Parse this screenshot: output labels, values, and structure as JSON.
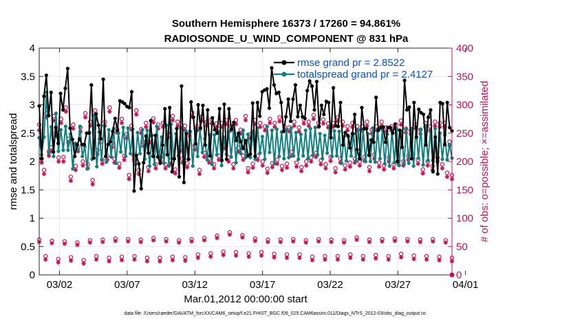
{
  "chart_data": {
    "type": "line",
    "title_line1": "Southern Hemisphere 16373 / 17260 = 94.861%",
    "title_line2": "RADIOSONDE_U_WIND_COMPONENT @ 831 hPa",
    "xlabel": "Mar.01,2012 00:00:00 start",
    "ylabel": "rmse and totalspread",
    "y2label": "# of obs: o=possible; ×=assimilated",
    "footnote": "data file: /Users/raeder/DAI/ATM_forcXX/CAM6_setup/f.e21.FHIST_BGC.f09_025.CAM6assim.011/Diags_NTrS_2012-03/obs_diag_output.nc",
    "xlim": [
      0.5,
      31.0
    ],
    "ylim": [
      0,
      4
    ],
    "y2lim": [
      0,
      400
    ],
    "x_ticks": [
      2,
      7,
      12,
      17,
      22,
      27,
      32
    ],
    "x_tick_labels": [
      "03/02",
      "03/07",
      "03/12",
      "03/17",
      "03/22",
      "03/27",
      "04/01"
    ],
    "y_ticks": [
      0,
      0.5,
      1,
      1.5,
      2,
      2.5,
      3,
      3.5,
      4
    ],
    "y_tick_labels": [
      "0",
      "0.5",
      "1",
      "1.5",
      "2",
      "2.5",
      "3",
      "3.5",
      "4"
    ],
    "y2_ticks": [
      0,
      50,
      100,
      150,
      200,
      250,
      300,
      350,
      400
    ],
    "y2_tick_labels": [
      "0",
      "50",
      "100",
      "150",
      "200",
      "250",
      "300",
      "350",
      "400"
    ],
    "colors": {
      "rmse": "#000000",
      "spread": "#0e8080",
      "obs": "#c8104f",
      "legend_text": "#0a4fd6",
      "grid": "#e6e6e6"
    },
    "legend": [
      {
        "label": "rmse grand pr = 2.8522",
        "series": "rmse"
      },
      {
        "label": "totalspread grand pr = 2.4127",
        "series": "spread"
      }
    ],
    "series": [
      {
        "name": "rmse",
        "values": [
          2.98,
          2.05,
          3.15,
          3.52,
          2.81,
          3.22,
          2.17,
          2.6,
          2.32,
          3.2,
          2.91,
          3.29,
          3.64,
          2.59,
          2.39,
          2.09,
          2.3,
          2.4,
          2.3,
          2.3,
          2.5,
          2.5,
          3.35,
          2.06,
          2.84,
          2.64,
          2.4,
          3.45,
          2.09,
          2.3,
          2.35,
          2.53,
          2.76,
          2.55,
          3.07,
          3.05,
          3.02,
          2.97,
          2.95,
          3.23,
          1.48,
          2.11,
          1.96,
          1.52,
          1.98,
          2.45,
          2.15,
          2.72,
          2.09,
          2.46,
          2.08,
          1.97,
          2.29,
          2.93,
          2.12,
          2.95,
          1.82,
          2.05,
          2.58,
          1.73,
          3.33,
          1.63,
          2.49,
          2.04,
          3.05,
          2.78,
          2.31,
          3.0,
          2.59,
          2.99,
          2.29,
          2.91,
          2.1,
          2.77,
          2.56,
          2.5,
          2.93,
          2.02,
          3.01,
          2.04,
          2.93,
          2.57,
          2.69,
          2.37,
          2.5,
          2.35,
          2.23,
          2.37,
          2.1,
          2.13,
          3.03,
          2.09,
          3.04,
          2.8,
          3.23,
          3.26,
          3.28,
          2.94,
          3.65,
          3.35,
          3.2,
          3.22,
          3.04,
          2.53,
          2.79,
          3.1,
          2.71,
          3.1,
          3.35,
          2.79,
          2.99,
          2.79,
          2.76,
          3.25,
          3.42,
          3.33,
          2.91,
          3.41,
          2.62,
          2.99,
          2.83,
          3.06,
          3.04,
          2.42,
          3.3,
          2.63,
          2.62,
          3.04,
          2.29,
          2.51,
          2.46,
          2.24,
          2.49,
          2.83,
          2.21,
          2.05,
          2.95,
          2.58,
          2.58,
          2.11,
          2.38,
          2.34,
          3.13,
          2.55,
          2.6,
          2.61,
          2.34,
          2.6,
          2.6,
          2.5,
          2.66,
          2.0,
          2.55,
          2.25,
          3.43,
          2.91,
          2.96,
          2.05,
          3.04,
          2.43,
          2.92,
          2.86,
          2.83,
          2.29,
          2.78,
          2.91,
          1.82,
          2.43,
          1.78,
          3.04,
          3.02,
          2.3,
          3.04,
          2.6,
          2.54
        ]
      },
      {
        "name": "totalspread",
        "values": [
          2.42,
          2.12,
          2.43,
          3.22,
          2.15,
          2.61,
          2.09,
          2.85,
          2.18,
          2.56,
          2.2,
          2.62,
          2.2,
          2.48,
          1.87,
          2.32,
          2.22,
          2.62,
          2.09,
          2.26,
          1.87,
          2.51,
          2.04,
          2.81,
          1.91,
          2.52,
          2.03,
          2.63,
          1.99,
          2.56,
          2.08,
          2.58,
          1.97,
          2.5,
          2.17,
          2.6,
          2.09,
          2.59,
          2.14,
          2.57,
          1.95,
          2.51,
          2.14,
          2.56,
          2.04,
          2.55,
          1.92,
          2.46,
          1.95,
          2.62,
          2.06,
          2.43,
          1.97,
          2.64,
          1.92,
          2.66,
          2.05,
          2.49,
          2.1,
          2.59,
          1.98,
          2.54,
          2.04,
          2.53,
          1.92,
          2.58,
          2.09,
          2.56,
          2.16,
          2.4,
          2.03,
          2.47,
          1.95,
          2.47,
          2.12,
          2.53,
          1.93,
          2.43,
          2.13,
          2.52,
          2.08,
          2.58,
          1.98,
          2.48,
          2.14,
          2.55,
          2.07,
          2.48,
          2.07,
          2.53,
          2.04,
          2.59,
          2.15,
          2.44,
          2.04,
          2.62,
          2.16,
          2.55,
          1.96,
          2.57,
          2.09,
          2.52,
          2.05,
          2.56,
          2.07,
          2.59,
          2.1,
          2.51,
          2.04,
          2.48,
          2.1,
          2.55,
          2.05,
          2.58,
          2.11,
          2.6,
          2.12,
          2.49,
          2.05,
          2.46,
          2.15,
          2.62,
          2.09,
          2.54,
          2.1,
          2.53,
          1.97,
          2.44,
          2.01,
          2.44,
          2.1,
          2.49,
          2.01,
          2.56,
          2.04,
          2.56,
          2.0,
          2.49,
          2.0,
          2.59,
          1.99,
          2.57,
          2.05,
          2.56,
          1.96,
          2.48,
          1.92,
          2.55,
          1.98,
          2.56,
          1.93,
          2.53,
          1.96,
          2.57,
          1.97,
          2.58,
          1.92,
          2.59,
          2.06,
          2.57,
          1.94,
          2.63,
          2.02,
          2.53,
          2.02,
          2.58,
          2.03,
          2.5,
          2.04,
          2.47,
          2.03,
          2.3,
          2.06
        ]
      },
      {
        "name": "obs_possible",
        "values": [
          265,
          205,
          185,
          285,
          218,
          225,
          280,
          252,
          207,
          275,
          208,
          295,
          240,
          173,
          265,
          192,
          225,
          260,
          200,
          285,
          195,
          270,
          167,
          290,
          220,
          240,
          203,
          270,
          210,
          295,
          232,
          205,
          258,
          196,
          275,
          210,
          248,
          176,
          263,
          210,
          290,
          185,
          257,
          234,
          268,
          190,
          240,
          276,
          195,
          265,
          207,
          268,
          195,
          250,
          202,
          280,
          186,
          270,
          225,
          205,
          263,
          197,
          252,
          286,
          228,
          262,
          185,
          279,
          215,
          270,
          205,
          274,
          195,
          267,
          210,
          268,
          230,
          273,
          207,
          262,
          195,
          273,
          224,
          256,
          210,
          280,
          188,
          248,
          196,
          273,
          210,
          268,
          200,
          262,
          187,
          275,
          197,
          268,
          203,
          278,
          192,
          262,
          196,
          260,
          217,
          270,
          198,
          260,
          190,
          274,
          200,
          270,
          207,
          282,
          215,
          268,
          202,
          274,
          195,
          267,
          208,
          268,
          188,
          278,
          205,
          270,
          193,
          262,
          198,
          268,
          205,
          262,
          200,
          262,
          208,
          270,
          190,
          256,
          212,
          262,
          198,
          270,
          193,
          260,
          207,
          262,
          195,
          265,
          202,
          272,
          200,
          258,
          210,
          255,
          213,
          265,
          203,
          256,
          186,
          268,
          200,
          262,
          192,
          270,
          207,
          268,
          195,
          268,
          180,
          235,
          176
        ]
      },
      {
        "name": "obs_assimilated",
        "values": [
          255,
          198,
          178,
          278,
          210,
          218,
          272,
          245,
          200,
          268,
          200,
          288,
          233,
          166,
          258,
          185,
          218,
          253,
          193,
          278,
          188,
          263,
          160,
          283,
          213,
          233,
          196,
          263,
          203,
          288,
          225,
          198,
          251,
          189,
          268,
          203,
          241,
          169,
          256,
          203,
          283,
          178,
          250,
          227,
          261,
          183,
          233,
          269,
          188,
          258,
          200,
          261,
          188,
          243,
          195,
          273,
          179,
          263,
          218,
          198,
          256,
          190,
          245,
          279,
          221,
          255,
          178,
          272,
          208,
          263,
          198,
          267,
          188,
          260,
          203,
          261,
          223,
          266,
          200,
          255,
          188,
          266,
          217,
          249,
          203,
          273,
          181,
          241,
          189,
          266,
          203,
          261,
          193,
          255,
          180,
          268,
          190,
          261,
          196,
          271,
          185,
          255,
          189,
          253,
          210,
          263,
          191,
          253,
          183,
          267,
          193,
          263,
          200,
          275,
          208,
          261,
          195,
          267,
          188,
          260,
          201,
          261,
          181,
          271,
          198,
          263,
          186,
          255,
          191,
          261,
          198,
          255,
          193,
          255,
          201,
          263,
          183,
          249,
          205,
          255,
          191,
          263,
          186,
          253,
          200,
          255,
          188,
          258,
          195,
          265,
          193,
          251,
          203,
          248,
          206,
          258,
          196,
          249,
          179,
          261,
          193,
          255,
          185,
          263,
          200,
          261,
          188,
          261,
          173,
          228,
          169
        ]
      },
      {
        "name": "obs_possible_low",
        "values": [
          62,
          33,
          60,
          28,
          59,
          31,
          57,
          26,
          61,
          33,
          62,
          30,
          64,
          32,
          63,
          33,
          62,
          30,
          65,
          30,
          63,
          32,
          61,
          31,
          63,
          36,
          65,
          38,
          69,
          41,
          75,
          40,
          70,
          38,
          64,
          40,
          62,
          37,
          62,
          36,
          63,
          36,
          61,
          32,
          63,
          33,
          62,
          33,
          61,
          36,
          66,
          33,
          62,
          35,
          63,
          33,
          64,
          37,
          63,
          34,
          62,
          33,
          63,
          32,
          61,
          30
        ]
      },
      {
        "name": "obs_assimilated_low",
        "values": [
          58,
          27,
          56,
          22,
          55,
          25,
          53,
          20,
          57,
          27,
          58,
          24,
          60,
          26,
          59,
          27,
          58,
          24,
          61,
          24,
          59,
          26,
          57,
          25,
          59,
          30,
          61,
          32,
          65,
          35,
          71,
          34,
          66,
          32,
          60,
          34,
          58,
          31,
          58,
          30,
          59,
          30,
          57,
          26,
          59,
          27,
          58,
          27,
          57,
          30,
          62,
          27,
          58,
          29,
          59,
          27,
          60,
          31,
          59,
          28,
          58,
          27,
          59,
          26,
          57,
          24
        ]
      }
    ]
  }
}
